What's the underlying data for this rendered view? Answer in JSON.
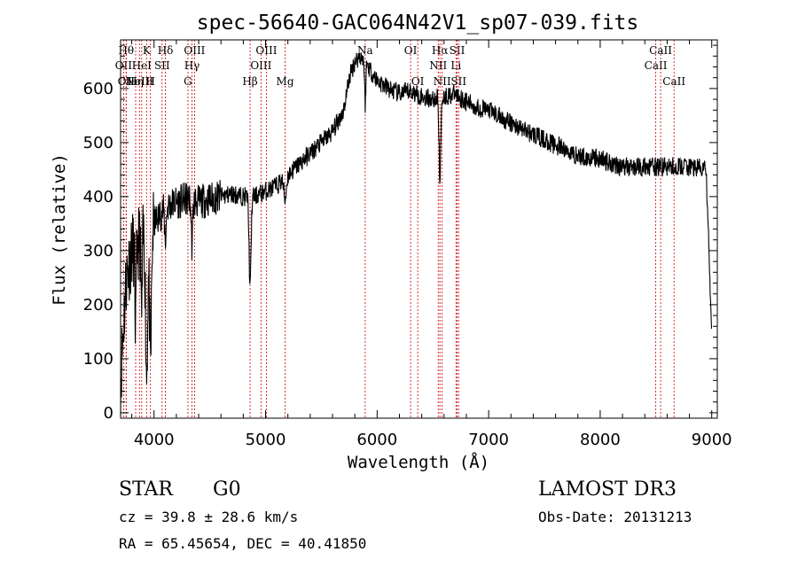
{
  "chart_data": {
    "type": "line",
    "title": "spec-56640-GAC064N42V1_sp07-039.fits",
    "xlabel": "Wavelength (Å)",
    "ylabel": "Flux (relative)",
    "xlim": [
      3700,
      9050
    ],
    "ylim": [
      -10,
      690
    ],
    "xticks": [
      4000,
      5000,
      6000,
      7000,
      8000,
      9000
    ],
    "yticks": [
      0,
      100,
      200,
      300,
      400,
      500,
      600
    ],
    "grid": false,
    "continuum": {
      "x": [
        3700,
        3750,
        3800,
        3850,
        3900,
        3950,
        4000,
        4100,
        4200,
        4300,
        4400,
        4500,
        4600,
        4700,
        4800,
        4900,
        5000,
        5100,
        5200,
        5300,
        5400,
        5500,
        5600,
        5700,
        5750,
        5800,
        5850,
        5900,
        5950,
        6000,
        6100,
        6200,
        6300,
        6400,
        6500,
        6600,
        6700,
        6800,
        6900,
        7000,
        7200,
        7400,
        7600,
        7800,
        8000,
        8200,
        8400,
        8600,
        8800,
        8950,
        9000
      ],
      "y": [
        60,
        250,
        300,
        310,
        330,
        300,
        350,
        380,
        390,
        395,
        390,
        395,
        400,
        405,
        400,
        400,
        410,
        420,
        440,
        460,
        480,
        500,
        520,
        560,
        620,
        650,
        660,
        650,
        630,
        615,
        600,
        590,
        595,
        585,
        580,
        585,
        590,
        575,
        565,
        560,
        535,
        515,
        495,
        475,
        470,
        455,
        455,
        455,
        455,
        450,
        140
      ]
    },
    "absorption_features": [
      {
        "center": 3933,
        "width": 12,
        "depth": 240
      },
      {
        "center": 3968,
        "width": 12,
        "depth": 230
      },
      {
        "center": 3835,
        "width": 8,
        "depth": 150
      },
      {
        "center": 3889,
        "width": 8,
        "depth": 150
      },
      {
        "center": 4102,
        "width": 10,
        "depth": 60
      },
      {
        "center": 4340,
        "width": 10,
        "depth": 80
      },
      {
        "center": 4861,
        "width": 12,
        "depth": 170
      },
      {
        "center": 5175,
        "width": 15,
        "depth": 40
      },
      {
        "center": 5893,
        "width": 8,
        "depth": 80
      },
      {
        "center": 6563,
        "width": 10,
        "depth": 160
      }
    ],
    "noise_amplitude": 18,
    "spectral_lines": [
      {
        "wavelength": 3750,
        "label": "Hθ",
        "row": 1
      },
      {
        "wavelength": 3727,
        "label": "OII",
        "row": 2
      },
      {
        "wavelength": 3750,
        "label": "OII",
        "row": 3
      },
      {
        "wavelength": 3835,
        "label": "Hη",
        "row": 3
      },
      {
        "wavelength": 3869,
        "label": "NeIII",
        "row": 3
      },
      {
        "wavelength": 3889,
        "label": "HeI",
        "row": 2
      },
      {
        "wavelength": 3933,
        "label": "K",
        "row": 1
      },
      {
        "wavelength": 3968,
        "label": "H",
        "row": 3
      },
      {
        "wavelength": 4072,
        "label": "SII",
        "row": 2
      },
      {
        "wavelength": 4102,
        "label": "Hδ",
        "row": 1
      },
      {
        "wavelength": 4304,
        "label": "G",
        "row": 3
      },
      {
        "wavelength": 4340,
        "label": "Hγ",
        "row": 2
      },
      {
        "wavelength": 4363,
        "label": "OIII",
        "row": 1
      },
      {
        "wavelength": 4861,
        "label": "Hβ",
        "row": 3
      },
      {
        "wavelength": 4959,
        "label": "OIII",
        "row": 2
      },
      {
        "wavelength": 5007,
        "label": "OIII",
        "row": 1
      },
      {
        "wavelength": 5175,
        "label": "Mg",
        "row": 3
      },
      {
        "wavelength": 5893,
        "label": "Na",
        "row": 1
      },
      {
        "wavelength": 6300,
        "label": "OI",
        "row": 1
      },
      {
        "wavelength": 6364,
        "label": "OI",
        "row": 3
      },
      {
        "wavelength": 6548,
        "label": "NII",
        "row": 2
      },
      {
        "wavelength": 6563,
        "label": "Hα",
        "row": 1
      },
      {
        "wavelength": 6583,
        "label": "NII",
        "row": 3
      },
      {
        "wavelength": 6707,
        "label": "Li",
        "row": 2
      },
      {
        "wavelength": 6717,
        "label": "SII",
        "row": 1
      },
      {
        "wavelength": 6731,
        "label": "SII",
        "row": 3
      },
      {
        "wavelength": 8498,
        "label": "CaII",
        "row": 2
      },
      {
        "wavelength": 8542,
        "label": "CaII",
        "row": 1
      },
      {
        "wavelength": 8662,
        "label": "CaII",
        "row": 3
      }
    ]
  },
  "info": {
    "class_label": "STAR",
    "subclass": "G0",
    "survey": "LAMOST DR3",
    "redshift": "cz = 39.8 ± 28.6 km/s",
    "obs_date": "Obs-Date: 20131213",
    "coords": "RA =  65.45654, DEC =  40.41850"
  },
  "colors": {
    "spectrum": "#000000",
    "line_markers": "#cc0000",
    "axes": "#000000"
  }
}
